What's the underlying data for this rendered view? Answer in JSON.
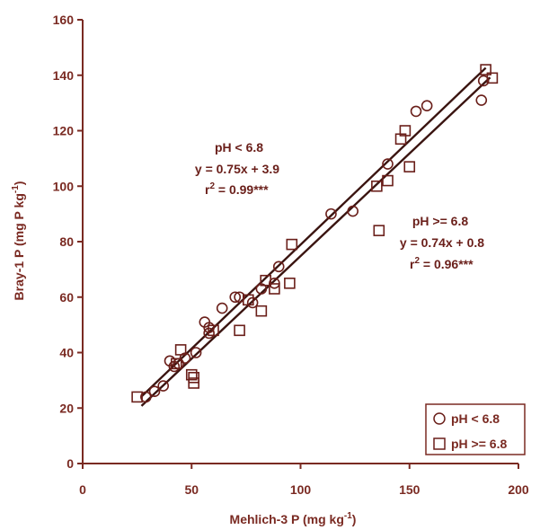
{
  "chart_data": {
    "type": "scatter",
    "xlabel": "Mehlich-3 P (mg kg",
    "xlabel_sup": "-1",
    "xlabel_end": ")",
    "ylabel": "Bray-1 P (mg P kg",
    "ylabel_sup": "-1",
    "ylabel_end": ")",
    "xlim": [
      0,
      200
    ],
    "ylim": [
      0,
      160
    ],
    "x_ticks": [
      "0",
      "50",
      "100",
      "150",
      "200"
    ],
    "y_ticks": [
      "0",
      "20",
      "40",
      "60",
      "80",
      "100",
      "120",
      "140",
      "160"
    ],
    "legend_position": "bottom-right",
    "series": [
      {
        "name": "pH < 6.8",
        "marker": "circle",
        "regression": {
          "slope": 0.75,
          "intercept": 3.9,
          "x_range": [
            27,
            185
          ]
        },
        "annotation": [
          "pH < 6.8",
          "y = 0.75x + 3.9",
          "r",
          "2",
          " = 0.99***"
        ],
        "points": [
          [
            29,
            24
          ],
          [
            33,
            26
          ],
          [
            37,
            28
          ],
          [
            40,
            37
          ],
          [
            42,
            35
          ],
          [
            44,
            36
          ],
          [
            47,
            38
          ],
          [
            52,
            40
          ],
          [
            56,
            51
          ],
          [
            58,
            49
          ],
          [
            58,
            47
          ],
          [
            64,
            56
          ],
          [
            70,
            60
          ],
          [
            72,
            60
          ],
          [
            78,
            58
          ],
          [
            82,
            63
          ],
          [
            88,
            65
          ],
          [
            90,
            71
          ],
          [
            114,
            90
          ],
          [
            124,
            91
          ],
          [
            140,
            108
          ],
          [
            153,
            127
          ],
          [
            158,
            129
          ],
          [
            183,
            131
          ],
          [
            184,
            138
          ]
        ]
      },
      {
        "name": "pH >= 6.8",
        "marker": "square",
        "regression": {
          "slope": 0.74,
          "intercept": 0.8,
          "x_range": [
            27,
            187
          ]
        },
        "annotation": [
          "pH >= 6.8",
          "y = 0.74x + 0.8",
          "r",
          "2",
          " = 0.96***"
        ],
        "points": [
          [
            25,
            24
          ],
          [
            43,
            36
          ],
          [
            45,
            41
          ],
          [
            50,
            32
          ],
          [
            51,
            29
          ],
          [
            51,
            31
          ],
          [
            60,
            48
          ],
          [
            72,
            48
          ],
          [
            76,
            59
          ],
          [
            82,
            55
          ],
          [
            84,
            66
          ],
          [
            88,
            63
          ],
          [
            95,
            65
          ],
          [
            96,
            79
          ],
          [
            135,
            100
          ],
          [
            136,
            84
          ],
          [
            140,
            102
          ],
          [
            146,
            117
          ],
          [
            148,
            120
          ],
          [
            150,
            107
          ],
          [
            185,
            142
          ],
          [
            188,
            139
          ]
        ]
      }
    ]
  }
}
